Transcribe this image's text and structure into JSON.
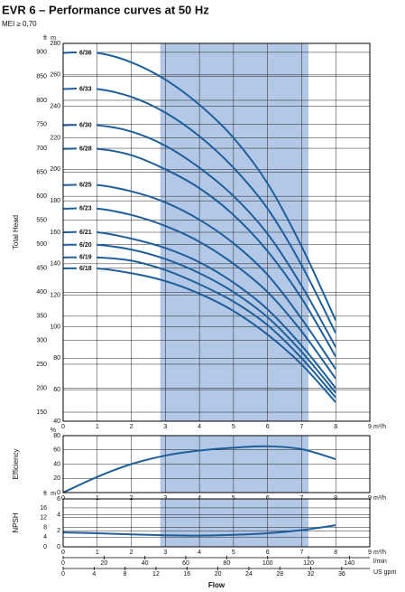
{
  "chart_data": [
    {
      "type": "line",
      "title": "EVR 6 – Performance curves at 50 Hz",
      "subtitle": "MEI ≥ 0,70",
      "y_label": "Total Head",
      "x_unit": "m³/h",
      "y_unit": "m",
      "y2_unit": "ft",
      "xlim": [
        0,
        9
      ],
      "xticks": [
        0,
        1,
        2,
        3,
        4,
        5,
        6,
        7,
        8,
        9
      ],
      "ylim": [
        40,
        280
      ],
      "yticks": [
        40,
        60,
        80,
        100,
        120,
        140,
        160,
        180,
        200,
        220,
        240,
        260,
        280
      ],
      "y2lim": [
        131.23,
        918.64
      ],
      "y2ticks": [
        150,
        200,
        250,
        300,
        350,
        400,
        450,
        500,
        550,
        600,
        650,
        700,
        750,
        800,
        850,
        900
      ],
      "grid": true,
      "highlight": [
        2.85,
        7.2
      ],
      "x": [
        0,
        1,
        2,
        3,
        4,
        5,
        6,
        7,
        8
      ],
      "series": [
        {
          "name": "6/36",
          "color": "#1e5f9b",
          "values": [
            274,
            274,
            268,
            257,
            241,
            220,
            191,
            151,
            104
          ]
        },
        {
          "name": "6/33",
          "color": "#1e5f9b",
          "values": [
            251,
            251,
            246,
            236,
            221,
            201,
            175,
            139,
            96
          ]
        },
        {
          "name": "6/30",
          "color": "#1e5f9b",
          "values": [
            228,
            228,
            224,
            215,
            201,
            183,
            159,
            126,
            87
          ]
        },
        {
          "name": "6/28",
          "color": "#1e5f9b",
          "values": [
            213,
            213,
            209,
            200,
            188,
            171,
            148,
            118,
            81
          ]
        },
        {
          "name": "6/25",
          "color": "#1e5f9b",
          "values": [
            190,
            190,
            186,
            179,
            168,
            153,
            133,
            105,
            73
          ]
        },
        {
          "name": "6/23",
          "color": "#1e5f9b",
          "values": [
            175,
            175,
            171,
            164,
            154,
            140,
            122,
            97,
            67
          ]
        },
        {
          "name": "6/21",
          "color": "#1e5f9b",
          "values": [
            160,
            160,
            156,
            150,
            141,
            128,
            111,
            88,
            61
          ]
        },
        {
          "name": "6/20",
          "color": "#1e5f9b",
          "values": [
            152,
            152,
            149,
            143,
            134,
            122,
            106,
            84,
            58
          ]
        },
        {
          "name": "6/19",
          "color": "#1e5f9b",
          "values": [
            144,
            144,
            142,
            136,
            127,
            116,
            101,
            80,
            55
          ]
        },
        {
          "name": "6/18",
          "color": "#1e5f9b",
          "values": [
            137,
            137,
            134,
            129,
            121,
            110,
            95,
            76,
            52
          ]
        }
      ]
    },
    {
      "type": "line",
      "y_label": "Efficiency",
      "x_unit": "m³/h",
      "y_unit": "%",
      "xlim": [
        0,
        9
      ],
      "xticks": [
        0,
        1,
        2,
        3,
        4,
        5,
        6,
        7,
        8,
        9
      ],
      "ylim": [
        0,
        80
      ],
      "yticks": [
        0,
        20,
        40,
        60,
        80
      ],
      "grid": true,
      "highlight": [
        2.85,
        7.2
      ],
      "x": [
        0,
        1,
        2,
        3,
        4,
        5,
        6,
        7,
        8
      ],
      "series": [
        {
          "color": "#1e5f9b",
          "values": [
            0,
            22,
            40,
            52,
            59,
            63,
            65,
            61,
            47
          ]
        }
      ]
    },
    {
      "type": "line",
      "y_label": "NPSH",
      "x_label": "Flow",
      "x_unit": "m³/h",
      "y_unit": "m",
      "y2_unit": "ft",
      "xlim": [
        0,
        9
      ],
      "xticks": [
        0,
        1,
        2,
        3,
        4,
        5,
        6,
        7,
        8,
        9
      ],
      "ylim": [
        0,
        6
      ],
      "yticks": [
        0,
        2,
        4,
        6
      ],
      "y2lim": [
        0,
        19.685
      ],
      "y2ticks": [
        0,
        4,
        8,
        12,
        16
      ],
      "grid": true,
      "highlight": [
        2.85,
        7.2
      ],
      "x": [
        0,
        1,
        2,
        3,
        4,
        5,
        6,
        7,
        8
      ],
      "series": [
        {
          "color": "#1e5f9b",
          "values": [
            1.8,
            1.7,
            1.55,
            1.45,
            1.4,
            1.5,
            1.7,
            2.1,
            2.7
          ]
        }
      ],
      "secondary_x_axes": [
        {
          "unit": "l/min",
          "lim": [
            0,
            150
          ],
          "ticks": [
            0,
            20,
            40,
            60,
            80,
            100,
            120,
            140
          ]
        },
        {
          "unit": "US gpm",
          "lim": [
            0,
            39.63
          ],
          "ticks": [
            0,
            4,
            8,
            12,
            16,
            20,
            24,
            28,
            32,
            36
          ]
        }
      ]
    }
  ]
}
